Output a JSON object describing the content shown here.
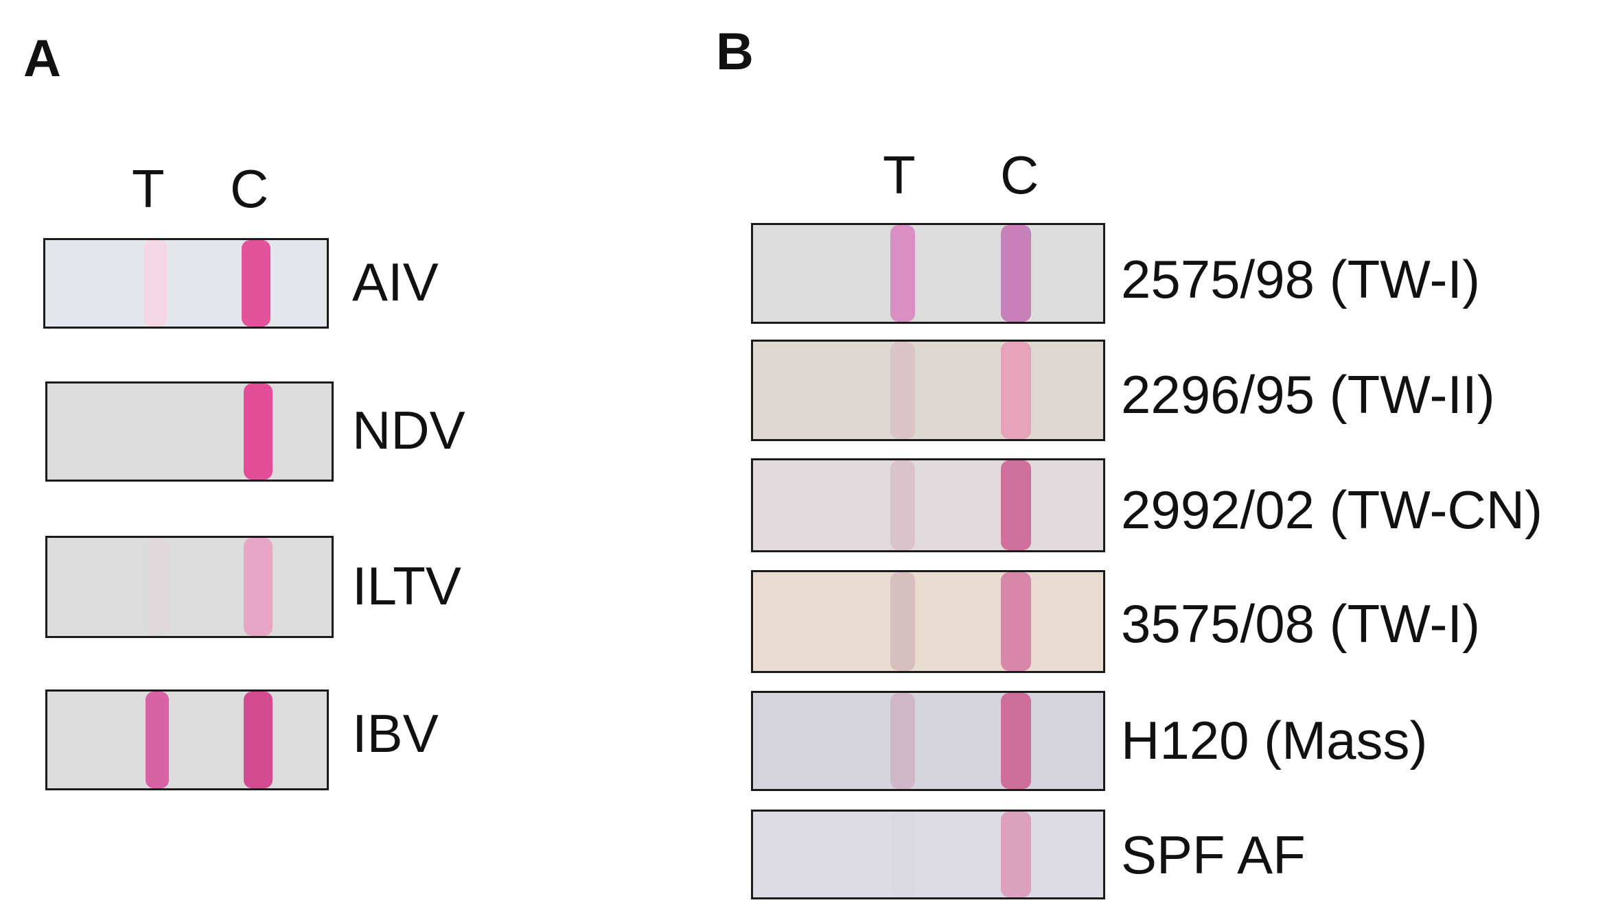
{
  "panels": [
    {
      "letter": "A",
      "col_labels": {
        "test": "T",
        "control": "C"
      },
      "strips": [
        {
          "label": "AIV",
          "bg": "#e3e6ea",
          "test_band": "#f3d7e3",
          "control_band": "#e2539b"
        },
        {
          "label": "NDV",
          "bg": "#dcdcdd",
          "test_band": "#dcdcdd",
          "control_band": "#e34d98"
        },
        {
          "label": "ILTV",
          "bg": "#dddcdc",
          "test_band": "#e0d9dc",
          "control_band": "#e8a6c6"
        },
        {
          "label": "IBV",
          "bg": "#dcdcdd",
          "test_band": "#d763a5",
          "control_band": "#d24a90"
        }
      ]
    },
    {
      "letter": "B",
      "col_labels": {
        "test": "T",
        "control": "C"
      },
      "strips": [
        {
          "label": "2575/98 (TW-I)",
          "bg": "#dcdcdc",
          "test_band": "#d98fc4",
          "control_band": "#c880b8"
        },
        {
          "label": "2296/95 (TW-II)",
          "bg": "#ddd8d2",
          "test_band": "#dbc5c8",
          "control_band": "#e4a3b8"
        },
        {
          "label": "2992/02 (TW-CN)",
          "bg": "#e0dadd",
          "test_band": "#dbc3cb",
          "control_band": "#cf6f9b"
        },
        {
          "label": "3575/08 (TW-I)",
          "bg": "#e7dccf",
          "test_band": "#d8bfbf",
          "control_band": "#d887a8"
        },
        {
          "label": "H120 (Mass)",
          "bg": "#d5d4da",
          "test_band": "#cfb7c6",
          "control_band": "#cc6d9a"
        },
        {
          "label": "SPF AF",
          "bg": "#dcdce2",
          "test_band": "#d9d9df",
          "control_band": "#dba1bd"
        }
      ]
    }
  ]
}
